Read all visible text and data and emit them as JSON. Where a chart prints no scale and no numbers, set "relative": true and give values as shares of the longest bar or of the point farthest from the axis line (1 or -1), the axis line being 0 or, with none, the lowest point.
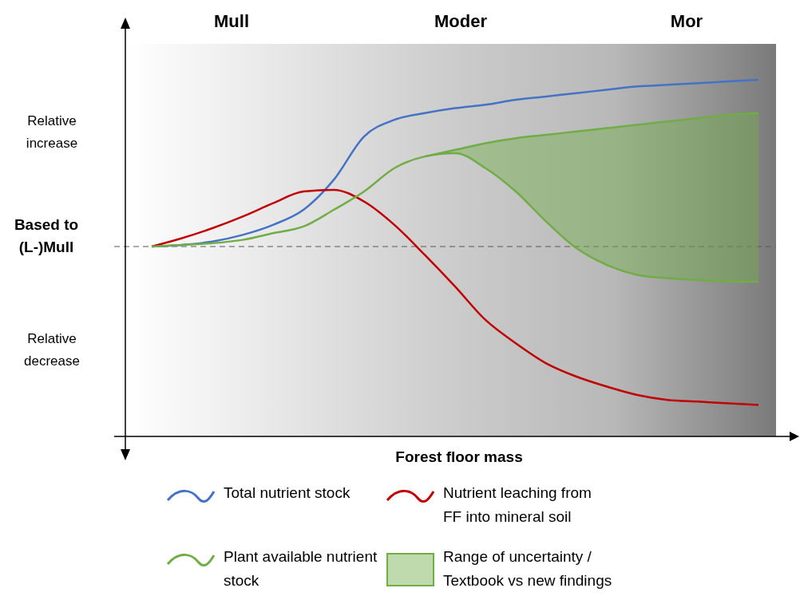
{
  "chart_data": {
    "type": "line",
    "relative": true,
    "xlabel": "Forest floor mass",
    "categories": [
      null,
      null,
      null,
      null,
      null,
      null,
      null,
      null,
      null,
      null,
      null,
      null,
      null,
      null,
      null,
      null,
      null,
      null,
      null,
      null,
      null
    ],
    "annotations": [
      "Mull",
      "Moder",
      "Mor",
      "Relative increase",
      "Relative decrease"
    ],
    "ref_lines": [
      {
        "axis": "y",
        "value": 0,
        "label": "Based to (L-)Mull",
        "color": "#595959",
        "line_style": "dashed"
      }
    ],
    "legend": "bottom",
    "series": [
      {
        "name": "Total nutrient stock",
        "color": "#4472c4",
        "values": [
          0,
          0.01,
          0.03,
          0.07,
          0.13,
          0.22,
          0.4,
          0.66,
          0.76,
          0.8,
          0.83,
          0.85,
          0.88,
          0.9,
          0.92,
          0.94,
          0.96,
          0.97,
          0.98,
          0.99,
          1
        ]
      },
      {
        "name": "Nutrient leaching from FF into mineral soil",
        "color": "#c00000",
        "values": [
          0,
          0.05,
          0.11,
          0.18,
          0.26,
          0.33,
          0.34,
          0.27,
          0.13,
          -0.05,
          -0.24,
          -0.44,
          -0.58,
          -0.7,
          -0.78,
          -0.84,
          -0.89,
          -0.92,
          -0.93,
          -0.94,
          -0.95
        ]
      },
      {
        "name": "Plant available nutrient stock",
        "color": "#70ad47",
        "values": [
          0,
          0.01,
          0.02,
          0.04,
          0.08,
          0.12,
          0.22,
          0.33,
          0.47,
          0.54,
          0.56,
          0.47,
          0.33,
          0.15,
          -0.01,
          -0.11,
          -0.17,
          -0.19,
          -0.2,
          -0.21,
          -0.21
        ]
      },
      {
        "name": "Range of uncertainty / Textbook vs new findings",
        "color": "#70ad47",
        "values": [
          null,
          null,
          null,
          null,
          null,
          null,
          null,
          null,
          null,
          0.54,
          0.58,
          0.62,
          0.65,
          0.67,
          0.69,
          0.71,
          0.73,
          0.75,
          0.77,
          0.79,
          0.8
        ],
        "lower": [
          null,
          null,
          null,
          null,
          null,
          null,
          null,
          null,
          null,
          0.54,
          0.56,
          0.47,
          0.33,
          0.15,
          -0.01,
          -0.11,
          -0.17,
          -0.19,
          -0.2,
          -0.21,
          -0.21
        ],
        "upper": [
          null,
          null,
          null,
          null,
          null,
          null,
          null,
          null,
          null,
          0.54,
          0.58,
          0.62,
          0.65,
          0.67,
          0.69,
          0.71,
          0.73,
          0.75,
          0.77,
          0.79,
          0.8
        ]
      }
    ]
  }
}
